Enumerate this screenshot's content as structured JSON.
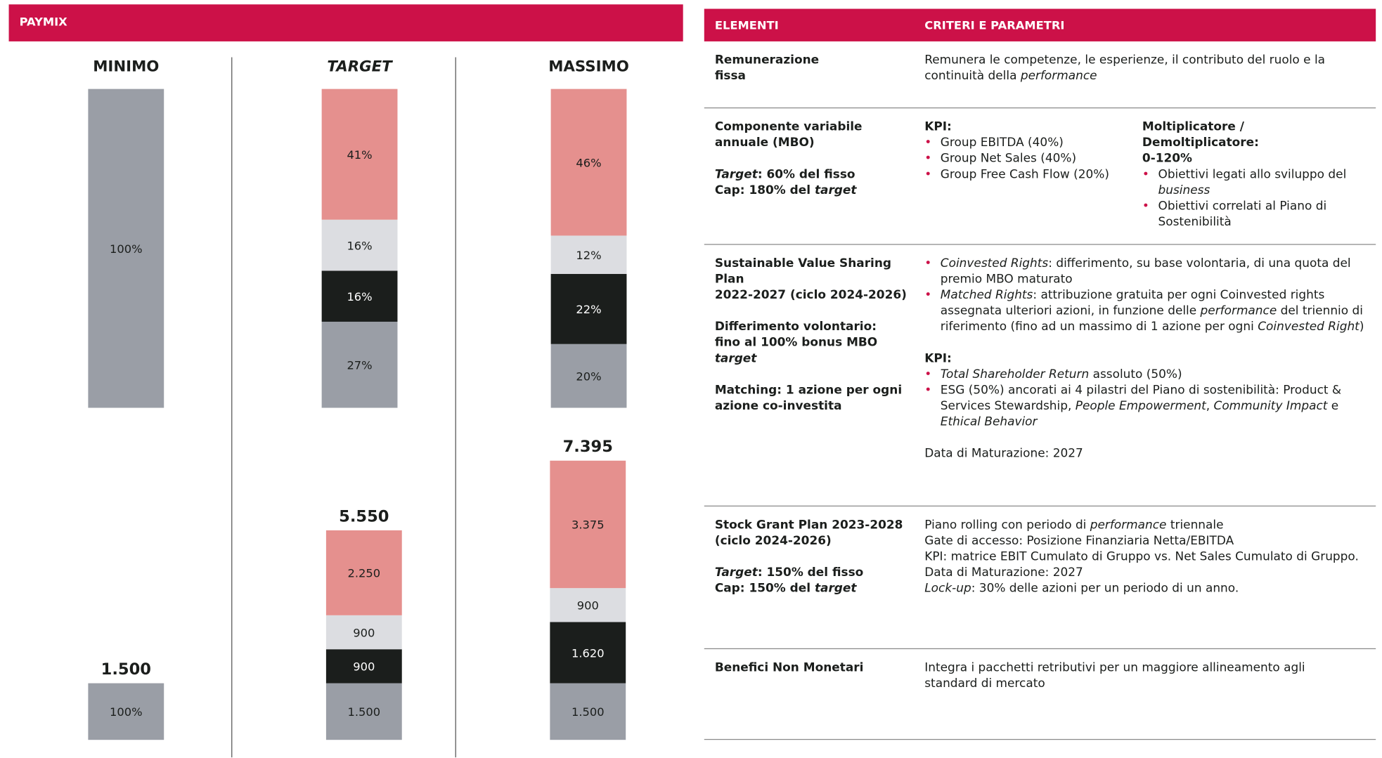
{
  "paymix": {
    "title": "PAYMIX",
    "columns": [
      {
        "heading": "MINIMO",
        "italic": false,
        "shares": [
          {
            "value": 100,
            "label": "100%",
            "color": "#9a9ea6"
          }
        ],
        "total": {
          "value": 1500,
          "label": "1.500"
        },
        "amount_shares": [
          {
            "value": 100,
            "label": "100%",
            "color": "#9a9ea6"
          }
        ]
      },
      {
        "heading": "TARGET",
        "italic": true,
        "shares": [
          {
            "value": 27,
            "label": "27%",
            "color": "#9a9ea6"
          },
          {
            "value": 16,
            "label": "16%",
            "color": "#1b1e1c"
          },
          {
            "value": 16,
            "label": "16%",
            "color": "#dcdde1"
          },
          {
            "value": 41,
            "label": "41%",
            "color": "#e5908e"
          }
        ],
        "total": {
          "value": 5550,
          "label": "5.550"
        },
        "amounts": [
          {
            "value": 1500,
            "label": "1.500",
            "color": "#9a9ea6"
          },
          {
            "value": 900,
            "color": "#1b1e1c"
          },
          {
            "value": 900,
            "color": "#dcdde1"
          },
          {
            "value": 2250,
            "label": "2.250",
            "color": "#e5908e"
          }
        ]
      },
      {
        "heading": "MASSIMO",
        "italic": false,
        "shares": [
          {
            "value": 20,
            "label": "20%",
            "color": "#9a9ea6"
          },
          {
            "value": 22,
            "label": "22%",
            "color": "#1b1e1c"
          },
          {
            "value": 12,
            "label": "12%",
            "color": "#dcdde1"
          },
          {
            "value": 46,
            "label": "46%",
            "color": "#e5908e"
          }
        ],
        "total": {
          "value": 7395,
          "label": "7.395"
        },
        "amounts": [
          {
            "value": 1500,
            "label": "1.500",
            "color": "#9a9ea6"
          },
          {
            "value": 1620,
            "label": "1.620",
            "color": "#1b1e1c"
          },
          {
            "value": 900,
            "color": "#dcdde1"
          },
          {
            "value": 3375,
            "label": "3.375",
            "color": "#e5908e"
          }
        ]
      }
    ]
  },
  "table": {
    "headers": [
      "ELEMENTI",
      "CRITERI E PARAMETRI"
    ],
    "rows": [
      {
        "left": [
          {
            "p": [
              "Remunerazione\nfissa"
            ]
          }
        ],
        "right": [
          [
            {
              "p": [
                "Remunera le competenze, le esperienze, il contributo del ruolo e la\ncontinuità della ",
                {
                  "i": "performance"
                }
              ]
            }
          ]
        ]
      },
      {
        "left": [
          {
            "p": [
              "Componente variabile\nannuale (MBO)"
            ]
          },
          {
            "p": [
              {
                "i": "Target"
              },
              ": 60% del fisso\nCap: 180% del ",
              {
                "i": "target"
              }
            ]
          }
        ],
        "right": [
          [
            {
              "h": [
                "KPI:"
              ]
            },
            {
              "ul": [
                [
                  "Group EBITDA (40%)"
                ],
                [
                  "Group Net Sales (40%)"
                ],
                [
                  "Group Free Cash Flow (20%)"
                ]
              ]
            }
          ],
          [
            {
              "h": [
                "Moltiplicatore / Demoltiplicatore:\n0-120%"
              ]
            },
            {
              "ul": [
                [
                  "Obiettivi legati allo sviluppo del ",
                  {
                    "i": "business"
                  }
                ],
                [
                  "Obiettivi correlati al Piano di Sostenibilità"
                ]
              ]
            }
          ]
        ]
      },
      {
        "left": [
          {
            "p": [
              "Sustainable Value Sharing Plan\n2022-2027 (ciclo 2024-2026)"
            ]
          },
          {
            "p": [
              "Differimento volontario:\nfino al 100% bonus MBO ",
              {
                "i": "target"
              }
            ]
          },
          {
            "p": [
              "Matching: 1 azione per ogni\nazione co-investita"
            ]
          }
        ],
        "right": [
          [
            {
              "ul": [
                [
                  {
                    "i": "Coinvested Rights"
                  },
                  ": differimento, su base volontaria, di una quota del premio MBO maturato"
                ],
                [
                  {
                    "i": "Matched Rights"
                  },
                  ": attribuzione gratuita per ogni Coinvested rights assegnata ulteriori azioni, in funzione delle ",
                  {
                    "i": "performance"
                  },
                  " del triennio di riferimento (fino ad un massimo di 1 azione per ogni ",
                  {
                    "i": "Coinvested Right"
                  },
                  ")"
                ]
              ]
            },
            {
              "h": [
                "KPI:"
              ]
            },
            {
              "ul": [
                [
                  {
                    "i": "Total Shareholder Return"
                  },
                  " assoluto (50%)"
                ],
                [
                  "ESG (50%) ancorati ai 4 pilastri del Piano di sostenibilità: Product & Services Stewardship, ",
                  {
                    "i": "People Empowerment"
                  },
                  ", ",
                  {
                    "i": "Community Impact"
                  },
                  " e ",
                  {
                    "i": "Ethical Behavior"
                  }
                ]
              ]
            },
            {
              "p": [
                "Data di Maturazione: 2027"
              ]
            }
          ]
        ]
      },
      {
        "left": [
          {
            "p": [
              "Stock Grant Plan 2023-2028\n(ciclo 2024-2026)"
            ]
          },
          {
            "p": [
              {
                "i": "Target"
              },
              ": 150% del fisso\nCap: 150% del ",
              {
                "i": "target"
              }
            ]
          }
        ],
        "right": [
          [
            {
              "p": [
                "Piano rolling con periodo di ",
                {
                  "i": "performance"
                },
                " triennale\nGate di accesso: Posizione Finanziaria Netta/EBITDA\nKPI: matrice EBIT Cumulato di Gruppo vs. Net Sales Cumulato di Gruppo.\nData di Maturazione: 2027\n",
                {
                  "i": "Lock-up"
                },
                ": 30% delle azioni per un periodo di un anno."
              ]
            }
          ]
        ]
      },
      {
        "left": [
          {
            "p": [
              "Benefici Non Monetari"
            ]
          }
        ],
        "right": [
          [
            {
              "p": [
                "Integra i pacchetti retributivi per un maggiore allineamento agli\nstandard di mercato"
              ]
            }
          ]
        ]
      }
    ]
  }
}
